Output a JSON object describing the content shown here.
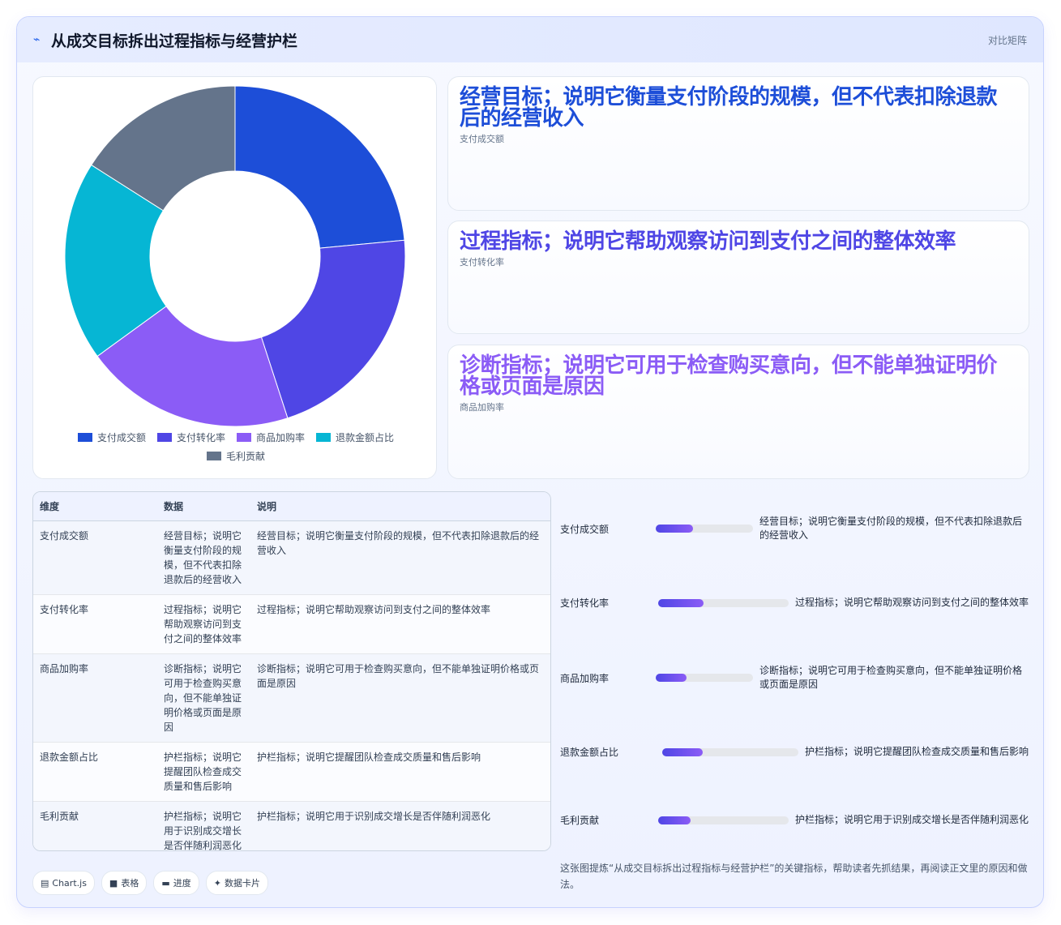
{
  "header": {
    "title": "从成交目标拆出过程指标与经营护栏",
    "mode_label": "对比矩阵",
    "logo_icon": "sparkline-icon"
  },
  "chart_data": {
    "type": "pie",
    "donut": true,
    "categories": [
      "支付成交额",
      "支付转化率",
      "商品加购率",
      "退款金额占比",
      "毛利贡献"
    ],
    "values": [
      23.5,
      21.5,
      20,
      19,
      16
    ],
    "colors": [
      "#1d4ed8",
      "#4f46e5",
      "#8b5cf6",
      "#06b6d4",
      "#64748b"
    ],
    "legend_position": "bottom"
  },
  "kpis": [
    {
      "big": "经营目标；说明它衡量支付阶段的规模，但不代表扣除退款后的经营收入",
      "sub": "支付成交额",
      "color": "#1d4ed8"
    },
    {
      "big": "过程指标；说明它帮助观察访问到支付之间的整体效率",
      "sub": "支付转化率",
      "color": "#4f46e5"
    },
    {
      "big": "诊断指标；说明它可用于检查购买意向，但不能单独证明价格或页面是原因",
      "sub": "商品加购率",
      "color": "#8b5cf6"
    }
  ],
  "table": {
    "headers": [
      "维度",
      "数据",
      "说明"
    ],
    "rows": [
      {
        "dim": "支付成交额",
        "data": "经营目标；说明它衡量支付阶段的规模，但不代表扣除退款后的经营收入",
        "desc": "经营目标；说明它衡量支付阶段的规模，但不代表扣除退款后的经营收入"
      },
      {
        "dim": "支付转化率",
        "data": "过程指标；说明它帮助观察访问到支付之间的整体效率",
        "desc": "过程指标；说明它帮助观察访问到支付之间的整体效率"
      },
      {
        "dim": "商品加购率",
        "data": "诊断指标；说明它可用于检查购买意向，但不能单独证明价格或页面是原因",
        "desc": "诊断指标；说明它可用于检查购买意向，但不能单独证明价格或页面是原因"
      },
      {
        "dim": "退款金额占比",
        "data": "护栏指标；说明它提醒团队检查成交质量和售后影响",
        "desc": "护栏指标；说明它提醒团队检查成交质量和售后影响"
      },
      {
        "dim": "毛利贡献",
        "data": "护栏指标；说明它用于识别成交增长是否伴随利润恶化",
        "desc": "护栏指标；说明它用于识别成交增长是否伴随利润恶化"
      }
    ]
  },
  "progress": [
    {
      "label": "支付成交额",
      "fill": 0.38,
      "note": "经营目标；说明它衡量支付阶段的规模，但不代表扣除退款后的经营收入"
    },
    {
      "label": "支付转化率",
      "fill": 0.35,
      "note": "过程指标；说明它帮助观察访问到支付之间的整体效率"
    },
    {
      "label": "商品加购率",
      "fill": 0.32,
      "note": "诊断指标；说明它可用于检查购买意向，但不能单独证明价格或页面是原因"
    },
    {
      "label": "退款金额占比",
      "fill": 0.3,
      "note": "护栏指标；说明它提醒团队检查成交质量和售后影响"
    },
    {
      "label": "毛利贡献",
      "fill": 0.25,
      "note": "护栏指标；说明它用于识别成交增长是否伴随利润恶化"
    }
  ],
  "footnote": "这张图提炼“从成交目标拆出过程指标与经营护栏”的关键指标，帮助读者先抓结果，再阅读正文里的原因和做法。",
  "tags": [
    {
      "icon": "chart-icon",
      "label": "Chart.js"
    },
    {
      "icon": "table-icon",
      "label": "表格"
    },
    {
      "icon": "progress-icon",
      "label": "进度"
    },
    {
      "icon": "card-icon",
      "label": "数据卡片"
    }
  ]
}
